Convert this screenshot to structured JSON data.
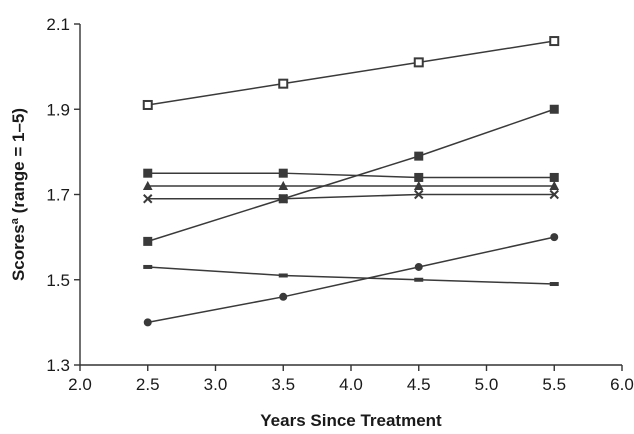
{
  "chart_data": {
    "type": "line",
    "title": "",
    "xlabel": "Years Since Treatment",
    "ylabel": "Scoresª (range = 1–5)",
    "xlim": [
      2.0,
      6.0
    ],
    "ylim": [
      1.3,
      2.1
    ],
    "xticks": [
      "2.0",
      "2.5",
      "3.0",
      "3.5",
      "4.0",
      "4.5",
      "5.0",
      "5.5",
      "6.0"
    ],
    "yticks": [
      "1.3",
      "1.5",
      "1.7",
      "1.9",
      "2.1"
    ],
    "grid": false,
    "legend": "none",
    "x": [
      2.5,
      3.5,
      4.5,
      5.5
    ],
    "series": [
      {
        "marker": "square-open",
        "values": [
          1.91,
          1.96,
          2.01,
          2.06
        ]
      },
      {
        "marker": "square",
        "values": [
          1.59,
          1.69,
          1.79,
          1.9
        ]
      },
      {
        "marker": "square",
        "values": [
          1.75,
          1.75,
          1.74,
          1.74
        ]
      },
      {
        "marker": "triangle",
        "values": [
          1.72,
          1.72,
          1.72,
          1.72
        ]
      },
      {
        "marker": "cross",
        "values": [
          1.69,
          1.69,
          1.7,
          1.7
        ]
      },
      {
        "marker": "dash",
        "values": [
          1.53,
          1.51,
          1.5,
          1.49
        ]
      },
      {
        "marker": "circle",
        "values": [
          1.4,
          1.46,
          1.53,
          1.6
        ]
      }
    ],
    "colors": {
      "line": "#3a3a3a",
      "axis": "#333333"
    }
  }
}
